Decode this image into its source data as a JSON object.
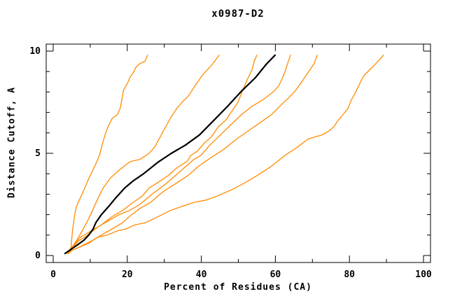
{
  "title": "x0987-D2",
  "axes": {
    "x": {
      "label": "Percent of Residues (CA)",
      "min": 0,
      "max": 100,
      "major_ticks": [
        {
          "v": 0,
          "label": "0"
        },
        {
          "v": 20,
          "label": "20"
        },
        {
          "v": 40,
          "label": "40"
        },
        {
          "v": 60,
          "label": "60"
        },
        {
          "v": 80,
          "label": "80"
        },
        {
          "v": 100,
          "label": "100"
        }
      ],
      "minor_ticks": [
        10,
        30,
        50,
        70,
        90
      ]
    },
    "y": {
      "label": "Distance Cutoff, A",
      "min": 0,
      "max": 10,
      "major_ticks": [
        {
          "v": 0,
          "label": "0"
        },
        {
          "v": 5,
          "label": "5"
        },
        {
          "v": 10,
          "label": "10"
        }
      ],
      "minor_ticks": [
        1,
        2,
        3,
        4,
        6,
        7,
        8,
        9
      ]
    }
  },
  "colors": {
    "model_curve": "#ff8c00",
    "highlight_curve": "#000000",
    "axis": "#000000",
    "background": "#ffffff"
  },
  "chart_data": {
    "type": "line",
    "title": "x0987-D2",
    "xlabel": "Percent of Residues (CA)",
    "ylabel": "Distance Cutoff, A",
    "xlim": [
      0,
      100
    ],
    "ylim": [
      0,
      10
    ],
    "grid": false,
    "legend": "none",
    "series": [
      {
        "name": "model-1",
        "color": "#ff8c00",
        "width": 1.3,
        "points": [
          [
            4.2,
            0.1
          ],
          [
            4.8,
            0.4
          ],
          [
            5.0,
            0.8
          ],
          [
            5.2,
            1.2
          ],
          [
            5.5,
            1.6
          ],
          [
            5.8,
            2.0
          ],
          [
            6.3,
            2.4
          ],
          [
            7.0,
            2.7
          ],
          [
            7.8,
            3.0
          ],
          [
            8.5,
            3.3
          ],
          [
            9.7,
            3.8
          ],
          [
            11.3,
            4.4
          ],
          [
            12.5,
            4.9
          ],
          [
            13.2,
            5.4
          ],
          [
            14.0,
            5.9
          ],
          [
            14.8,
            6.3
          ],
          [
            15.9,
            6.7
          ],
          [
            17.4,
            6.9
          ],
          [
            18.1,
            7.2
          ],
          [
            18.5,
            7.6
          ],
          [
            19.0,
            8.1
          ],
          [
            20.0,
            8.4
          ],
          [
            20.7,
            8.7
          ],
          [
            21.8,
            9.0
          ],
          [
            22.3,
            9.2
          ],
          [
            23.5,
            9.4
          ],
          [
            24.8,
            9.5
          ],
          [
            25.5,
            9.8
          ]
        ]
      },
      {
        "name": "model-2",
        "color": "#ff8c00",
        "width": 1.3,
        "points": [
          [
            3.2,
            0.1
          ],
          [
            4.7,
            0.3
          ],
          [
            6.2,
            0.7
          ],
          [
            7.8,
            1.2
          ],
          [
            9.3,
            1.7
          ],
          [
            10.6,
            2.2
          ],
          [
            12.1,
            2.8
          ],
          [
            13.5,
            3.3
          ],
          [
            15.5,
            3.8
          ],
          [
            18.0,
            4.2
          ],
          [
            20.8,
            4.6
          ],
          [
            23.4,
            4.7
          ],
          [
            25.9,
            5.0
          ],
          [
            27.4,
            5.3
          ],
          [
            28.9,
            5.8
          ],
          [
            30.4,
            6.3
          ],
          [
            31.9,
            6.8
          ],
          [
            33.4,
            7.2
          ],
          [
            34.8,
            7.5
          ],
          [
            36.5,
            7.8
          ],
          [
            38.3,
            8.3
          ],
          [
            40.2,
            8.8
          ],
          [
            41.7,
            9.1
          ],
          [
            43.2,
            9.4
          ],
          [
            44.8,
            9.8
          ]
        ]
      },
      {
        "name": "model-3",
        "color": "#ff8c00",
        "width": 1.3,
        "points": [
          [
            4.0,
            0.2
          ],
          [
            5.5,
            0.5
          ],
          [
            7.4,
            0.9
          ],
          [
            10.2,
            1.2
          ],
          [
            13.0,
            1.5
          ],
          [
            15.9,
            1.9
          ],
          [
            18.7,
            2.2
          ],
          [
            21.6,
            2.6
          ],
          [
            24.0,
            2.9
          ],
          [
            25.9,
            3.3
          ],
          [
            28.5,
            3.6
          ],
          [
            31.0,
            3.9
          ],
          [
            33.5,
            4.3
          ],
          [
            36.1,
            4.6
          ],
          [
            37.2,
            4.9
          ],
          [
            38.9,
            5.1
          ],
          [
            40.8,
            5.5
          ],
          [
            42.7,
            5.8
          ],
          [
            44.6,
            6.3
          ],
          [
            46.5,
            6.6
          ],
          [
            48.4,
            7.1
          ],
          [
            49.9,
            7.5
          ],
          [
            51.2,
            8.1
          ],
          [
            52.4,
            8.6
          ],
          [
            53.7,
            9.1
          ],
          [
            54.3,
            9.5
          ],
          [
            55.0,
            9.8
          ]
        ]
      },
      {
        "name": "model-4",
        "color": "#ff8c00",
        "width": 1.3,
        "points": [
          [
            3.8,
            0.1
          ],
          [
            4.9,
            0.3
          ],
          [
            6.8,
            0.7
          ],
          [
            9.3,
            1.0
          ],
          [
            12.1,
            1.4
          ],
          [
            14.9,
            1.7
          ],
          [
            17.8,
            2.0
          ],
          [
            20.6,
            2.2
          ],
          [
            23.4,
            2.5
          ],
          [
            26.7,
            3.0
          ],
          [
            30.4,
            3.5
          ],
          [
            34.2,
            4.1
          ],
          [
            38.0,
            4.7
          ],
          [
            39.9,
            4.9
          ],
          [
            42.3,
            5.4
          ],
          [
            45.2,
            5.9
          ],
          [
            48.0,
            6.4
          ],
          [
            50.9,
            6.9
          ],
          [
            53.7,
            7.3
          ],
          [
            56.5,
            7.6
          ],
          [
            59.4,
            8.0
          ],
          [
            60.9,
            8.3
          ],
          [
            62.2,
            8.8
          ],
          [
            62.8,
            9.1
          ],
          [
            63.5,
            9.5
          ],
          [
            64.1,
            9.8
          ]
        ]
      },
      {
        "name": "model-5",
        "color": "#ff8c00",
        "width": 1.3,
        "points": [
          [
            4.5,
            0.2
          ],
          [
            7.4,
            0.45
          ],
          [
            10.2,
            0.7
          ],
          [
            13.0,
            1.0
          ],
          [
            15.9,
            1.3
          ],
          [
            18.7,
            1.6
          ],
          [
            21.2,
            2.0
          ],
          [
            23.4,
            2.3
          ],
          [
            26.3,
            2.6
          ],
          [
            29.5,
            3.1
          ],
          [
            32.9,
            3.5
          ],
          [
            36.3,
            3.9
          ],
          [
            39.5,
            4.4
          ],
          [
            42.7,
            4.8
          ],
          [
            46.1,
            5.2
          ],
          [
            49.5,
            5.7
          ],
          [
            52.7,
            6.1
          ],
          [
            55.9,
            6.5
          ],
          [
            59.0,
            6.9
          ],
          [
            61.2,
            7.3
          ],
          [
            63.5,
            7.7
          ],
          [
            65.6,
            8.1
          ],
          [
            67.5,
            8.6
          ],
          [
            69.4,
            9.1
          ],
          [
            70.5,
            9.4
          ],
          [
            71.3,
            9.8
          ]
        ]
      },
      {
        "name": "model-6",
        "color": "#ff8c00",
        "width": 1.3,
        "points": [
          [
            4.0,
            0.1
          ],
          [
            5.1,
            0.25
          ],
          [
            7.0,
            0.4
          ],
          [
            9.6,
            0.6
          ],
          [
            12.1,
            0.9
          ],
          [
            14.6,
            1.0
          ],
          [
            17.2,
            1.2
          ],
          [
            19.7,
            1.3
          ],
          [
            22.1,
            1.5
          ],
          [
            24.8,
            1.6
          ],
          [
            27.2,
            1.8
          ],
          [
            31.6,
            2.2
          ],
          [
            34.8,
            2.4
          ],
          [
            38.0,
            2.6
          ],
          [
            41.0,
            2.7
          ],
          [
            44.2,
            2.9
          ],
          [
            46.7,
            3.1
          ],
          [
            48.0,
            3.2
          ],
          [
            51.2,
            3.5
          ],
          [
            55.0,
            3.9
          ],
          [
            58.8,
            4.35
          ],
          [
            62.6,
            4.9
          ],
          [
            66.0,
            5.3
          ],
          [
            68.8,
            5.7
          ],
          [
            70.7,
            5.8
          ],
          [
            72.6,
            5.9
          ],
          [
            74.5,
            6.1
          ],
          [
            75.8,
            6.3
          ],
          [
            76.9,
            6.6
          ],
          [
            78.3,
            6.9
          ],
          [
            79.6,
            7.2
          ],
          [
            80.5,
            7.6
          ],
          [
            81.7,
            8.0
          ],
          [
            83.0,
            8.5
          ],
          [
            83.9,
            8.8
          ],
          [
            86.4,
            9.25
          ],
          [
            89.2,
            9.8
          ]
        ]
      },
      {
        "name": "highlighted-model",
        "color": "#000000",
        "width": 2.2,
        "points": [
          [
            3.2,
            0.1
          ],
          [
            6.4,
            0.5
          ],
          [
            8.3,
            0.75
          ],
          [
            9.6,
            1.0
          ],
          [
            10.8,
            1.3
          ],
          [
            11.5,
            1.6
          ],
          [
            13.0,
            2.0
          ],
          [
            15.0,
            2.4
          ],
          [
            16.8,
            2.8
          ],
          [
            19.3,
            3.3
          ],
          [
            21.6,
            3.65
          ],
          [
            24.4,
            4.0
          ],
          [
            28.2,
            4.55
          ],
          [
            31.9,
            5.0
          ],
          [
            35.7,
            5.4
          ],
          [
            39.5,
            5.9
          ],
          [
            43.3,
            6.6
          ],
          [
            47.1,
            7.3
          ],
          [
            50.9,
            8.05
          ],
          [
            54.6,
            8.7
          ],
          [
            57.5,
            9.35
          ],
          [
            59.9,
            9.8
          ]
        ]
      }
    ]
  }
}
